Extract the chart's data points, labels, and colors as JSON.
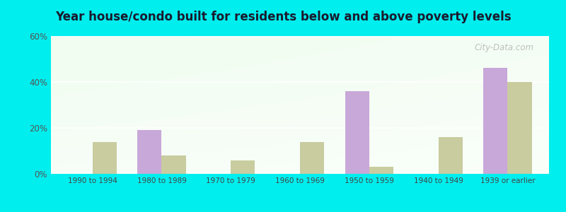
{
  "title": "Year house/condo built for residents below and above poverty levels",
  "categories": [
    "1990 to 1994",
    "1980 to 1989",
    "1970 to 1979",
    "1960 to 1969",
    "1950 to 1959",
    "1940 to 1949",
    "1939 or earlier"
  ],
  "below_poverty": [
    0,
    19,
    0,
    0,
    36,
    0,
    46
  ],
  "above_poverty": [
    14,
    8,
    6,
    14,
    3,
    16,
    40
  ],
  "below_color": "#c8a8d8",
  "above_color": "#c8cc9f",
  "ylim": [
    0,
    60
  ],
  "yticks": [
    0,
    20,
    40,
    60
  ],
  "ytick_labels": [
    "0%",
    "20%",
    "40%",
    "60%"
  ],
  "bar_width": 0.35,
  "outer_bg": "#00eeee",
  "watermark": "City-Data.com"
}
